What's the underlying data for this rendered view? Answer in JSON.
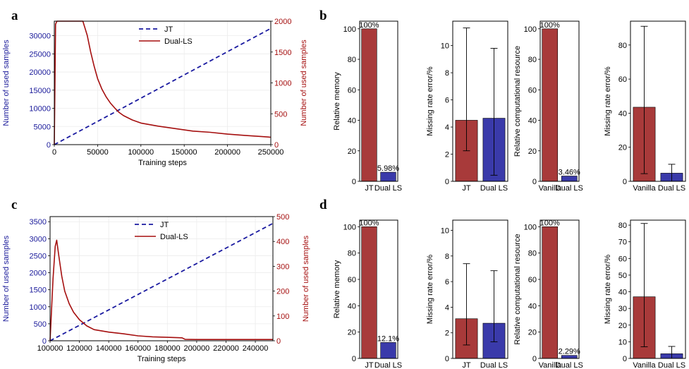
{
  "colors": {
    "jt": "#1a1aa0",
    "dual": "#a50f0f",
    "red_bar": "#a83a3a",
    "blue_bar": "#3a3aaa",
    "left_axis": "#1a1a9a",
    "right_axis": "#a50f0f"
  },
  "chart_data": [
    {
      "id": "a",
      "panel_label": "a",
      "type": "line",
      "xlabel": "Training steps",
      "ylabel_left": "Number of used samples",
      "ylabel_right": "Number of used samples",
      "xlim": [
        0,
        250000
      ],
      "ylim_left": [
        0,
        34000
      ],
      "ylim_right": [
        0,
        2000
      ],
      "xticks": [
        0,
        50000,
        100000,
        150000,
        200000,
        250000
      ],
      "xtick_labels": [
        "0",
        "50000",
        "100000",
        "150000",
        "200000",
        "250000"
      ],
      "yticks_left": [
        0,
        5000,
        10000,
        15000,
        20000,
        25000,
        30000
      ],
      "ytick_labels_left": [
        "0",
        "5000",
        "10000",
        "15000",
        "20000",
        "25000",
        "30000"
      ],
      "yticks_right": [
        0,
        500,
        1000,
        1500,
        2000
      ],
      "ytick_labels_right": [
        "0",
        "500",
        "1000",
        "1500",
        "2000"
      ],
      "legend": [
        "JT",
        "Dual-LS"
      ],
      "series": [
        {
          "name": "JT",
          "axis": "left",
          "style": "dashed",
          "x": [
            0,
            250000
          ],
          "y": [
            0,
            32000
          ]
        },
        {
          "name": "Dual-LS",
          "axis": "right",
          "style": "solid",
          "x": [
            0,
            1500,
            3000,
            30000,
            33000,
            38000,
            42000,
            46000,
            50000,
            55000,
            60000,
            65000,
            70000,
            75000,
            80000,
            90000,
            100000,
            120000,
            140000,
            160000,
            180000,
            200000,
            220000,
            240000,
            250000
          ],
          "y": [
            0,
            1950,
            2000,
            2000,
            2000,
            1770,
            1500,
            1270,
            1070,
            900,
            770,
            670,
            590,
            520,
            470,
            400,
            350,
            300,
            260,
            220,
            200,
            170,
            150,
            130,
            120
          ]
        }
      ]
    },
    {
      "id": "c",
      "panel_label": "c",
      "type": "line",
      "xlabel": "Training steps",
      "ylabel_left": "Number of used samples",
      "ylabel_right": "Number of used samples",
      "xlim": [
        100000,
        252000
      ],
      "ylim_left": [
        0,
        3650
      ],
      "ylim_right": [
        0,
        500
      ],
      "xticks": [
        100000,
        120000,
        140000,
        160000,
        180000,
        200000,
        220000,
        240000
      ],
      "xtick_labels": [
        "100000",
        "120000",
        "140000",
        "160000",
        "180000",
        "200000",
        "220000",
        "240000"
      ],
      "yticks_left": [
        0,
        500,
        1000,
        1500,
        2000,
        2500,
        3000,
        3500
      ],
      "ytick_labels_left": [
        "0",
        "500",
        "1000",
        "1500",
        "2000",
        "2500",
        "3000",
        "3500"
      ],
      "yticks_right": [
        0,
        100,
        200,
        300,
        400,
        500
      ],
      "ytick_labels_right": [
        "0",
        "100",
        "200",
        "300",
        "400",
        "500"
      ],
      "legend": [
        "JT",
        "Dual-LS"
      ],
      "series": [
        {
          "name": "JT",
          "axis": "left",
          "style": "dashed",
          "x": [
            100000,
            252000
          ],
          "y": [
            0,
            3450
          ]
        },
        {
          "name": "Dual-LS",
          "axis": "right",
          "style": "solid",
          "x": [
            100000,
            102000,
            103500,
            104500,
            106000,
            108000,
            110000,
            113000,
            116000,
            120000,
            125000,
            130000,
            140000,
            150000,
            160000,
            170000,
            180000,
            190000,
            192000,
            200000,
            220000,
            240000,
            252000
          ],
          "y": [
            0,
            250,
            380,
            405,
            340,
            260,
            200,
            150,
            115,
            85,
            60,
            45,
            35,
            28,
            20,
            16,
            14,
            12,
            6,
            5,
            5,
            5,
            5
          ]
        }
      ]
    },
    {
      "id": "b1",
      "panel_label": "b",
      "type": "bar",
      "ylabel": "Relative memory",
      "ylim": [
        0,
        105
      ],
      "yticks": [
        0,
        20,
        40,
        60,
        80,
        100
      ],
      "ytick_labels": [
        "0",
        "20",
        "40",
        "60",
        "80",
        "100"
      ],
      "categories": [
        "JT",
        "Dual LS"
      ],
      "values": [
        100,
        5.98
      ],
      "value_labels": [
        "100%",
        "5.98%"
      ],
      "colors": [
        "red",
        "blue"
      ]
    },
    {
      "id": "b2",
      "type": "bar",
      "ylabel": "Missing rate error/%",
      "ylim": [
        0,
        11.8
      ],
      "yticks": [
        0,
        2,
        4,
        6,
        8,
        10
      ],
      "ytick_labels": [
        "0",
        "2",
        "4",
        "6",
        "8",
        "10"
      ],
      "categories": [
        "JT",
        "Dual LS"
      ],
      "values": [
        4.5,
        4.65
      ],
      "err_low": [
        2.25,
        0.45
      ],
      "err_high": [
        11.3,
        9.8
      ],
      "colors": [
        "red",
        "blue"
      ]
    },
    {
      "id": "b3",
      "type": "bar",
      "ylabel": "Relative computational resource",
      "ylim": [
        0,
        105
      ],
      "yticks": [
        0,
        20,
        40,
        60,
        80,
        100
      ],
      "ytick_labels": [
        "0",
        "20",
        "40",
        "60",
        "80",
        "100"
      ],
      "categories": [
        "Vanilla",
        "Dual LS"
      ],
      "values": [
        100,
        3.46
      ],
      "value_labels": [
        "100%",
        "3.46%"
      ],
      "colors": [
        "red",
        "blue"
      ]
    },
    {
      "id": "b4",
      "type": "bar",
      "ylabel": "Missing rate error/%",
      "ylim": [
        0,
        94
      ],
      "yticks": [
        0,
        20,
        40,
        60,
        80
      ],
      "ytick_labels": [
        "0",
        "20",
        "40",
        "60",
        "80"
      ],
      "categories": [
        "Vanilla",
        "Dual LS"
      ],
      "values": [
        43.5,
        4.8
      ],
      "err_low": [
        4.5,
        0
      ],
      "err_high": [
        91,
        10
      ],
      "colors": [
        "red",
        "blue"
      ]
    },
    {
      "id": "d1",
      "panel_label": "d",
      "type": "bar",
      "ylabel": "Relative memory",
      "ylim": [
        0,
        105
      ],
      "yticks": [
        0,
        20,
        40,
        60,
        80,
        100
      ],
      "ytick_labels": [
        "0",
        "20",
        "40",
        "60",
        "80",
        "100"
      ],
      "categories": [
        "JT",
        "Dual LS"
      ],
      "values": [
        100,
        12.1
      ],
      "value_labels": [
        "100%",
        "12.1%"
      ],
      "colors": [
        "red",
        "blue"
      ]
    },
    {
      "id": "d2",
      "type": "bar",
      "ylabel": "Missing rate error/%",
      "ylim": [
        0,
        10.8
      ],
      "yticks": [
        0,
        2,
        4,
        6,
        8,
        10
      ],
      "ytick_labels": [
        "0",
        "2",
        "4",
        "6",
        "8",
        "10"
      ],
      "categories": [
        "JT",
        "Dual LS"
      ],
      "values": [
        3.1,
        2.75
      ],
      "err_low": [
        1.05,
        1.3
      ],
      "err_high": [
        7.4,
        6.85
      ],
      "colors": [
        "red",
        "blue"
      ]
    },
    {
      "id": "d3",
      "type": "bar",
      "ylabel": "Relative computational resource",
      "ylim": [
        0,
        105
      ],
      "yticks": [
        0,
        20,
        40,
        60,
        80,
        100
      ],
      "ytick_labels": [
        "0",
        "20",
        "40",
        "60",
        "80",
        "100"
      ],
      "categories": [
        "Vanilla",
        "Dual LS"
      ],
      "values": [
        100,
        2.29
      ],
      "value_labels": [
        "100%",
        "2.29%"
      ],
      "colors": [
        "red",
        "blue"
      ]
    },
    {
      "id": "d4",
      "type": "bar",
      "ylabel": "Missing rate error/%",
      "ylim": [
        0,
        83
      ],
      "yticks": [
        0,
        10,
        20,
        30,
        40,
        50,
        60,
        70,
        80
      ],
      "ytick_labels": [
        "0",
        "10",
        "20",
        "30",
        "40",
        "50",
        "60",
        "70",
        "80"
      ],
      "categories": [
        "Vanilla",
        "Dual LS"
      ],
      "values": [
        37,
        2.8
      ],
      "err_low": [
        7,
        0
      ],
      "err_high": [
        81,
        7.2
      ],
      "colors": [
        "red",
        "blue"
      ]
    }
  ]
}
